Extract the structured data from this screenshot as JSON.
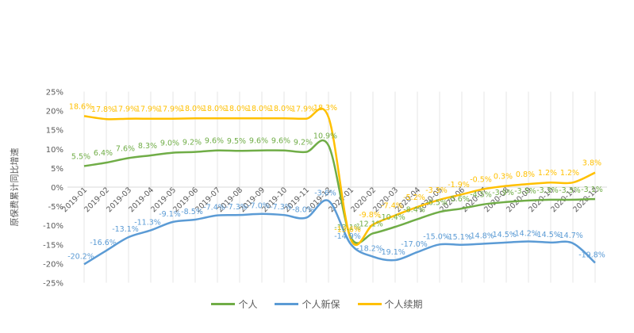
{
  "chart_data": {
    "type": "line",
    "title": "",
    "xlabel": "",
    "ylabel": "原保费累计同比增速",
    "ylim": [
      -25,
      25
    ],
    "yticks": [
      "25%",
      "20%",
      "15%",
      "10%",
      "5%",
      "0%",
      "-5%",
      "-10%",
      "-15%",
      "-20%",
      "-25%"
    ],
    "grid": "vertical",
    "legend_position": "bottom",
    "categories": [
      "2019-01",
      "2019-02",
      "2019-03",
      "2019-04",
      "2019-05",
      "2019-06",
      "2019-07",
      "2019-08",
      "2019-09",
      "2019-10",
      "2019-11",
      "2019-12",
      "2020-01",
      "2020-02",
      "2020-03",
      "2020-04",
      "2020-05",
      "2020-06",
      "2020-07",
      "2020-08",
      "2020-09",
      "2020-10",
      "2020-11",
      "2020-12"
    ],
    "series": [
      {
        "name": "个人",
        "color": "#70AD47",
        "values": [
          5.5,
          6.4,
          7.6,
          8.3,
          9.0,
          9.2,
          9.6,
          9.5,
          9.6,
          9.6,
          9.2,
          10.9,
          -13.1,
          -12.1,
          -10.4,
          -8.4,
          -6.5,
          -5.6,
          -4.5,
          -3.9,
          -3.5,
          -3.3,
          -3.3,
          -3.1
        ]
      },
      {
        "name": "个人新保",
        "color": "#5B9BD5",
        "values": [
          -20.2,
          -16.6,
          -13.1,
          -11.3,
          -9.1,
          -8.5,
          -7.4,
          -7.3,
          -7.0,
          -7.3,
          -8.0,
          -3.6,
          -14.9,
          -18.2,
          -19.1,
          -17.0,
          -15.0,
          -15.1,
          -14.8,
          -14.5,
          -14.2,
          -14.5,
          -14.7,
          -19.8
        ]
      },
      {
        "name": "个人续期",
        "color": "#FFC000",
        "values": [
          18.6,
          17.8,
          17.9,
          17.9,
          17.9,
          18.0,
          18.0,
          18.0,
          18.0,
          18.0,
          17.9,
          18.3,
          -13.6,
          -9.8,
          -7.4,
          -5.2,
          -3.3,
          -1.9,
          -0.5,
          0.3,
          0.8,
          1.2,
          1.2,
          3.8
        ]
      }
    ]
  },
  "legend": {
    "items": [
      {
        "label": "个人",
        "color": "#70AD47"
      },
      {
        "label": "个人新保",
        "color": "#5B9BD5"
      },
      {
        "label": "个人续期",
        "color": "#FFC000"
      }
    ]
  }
}
